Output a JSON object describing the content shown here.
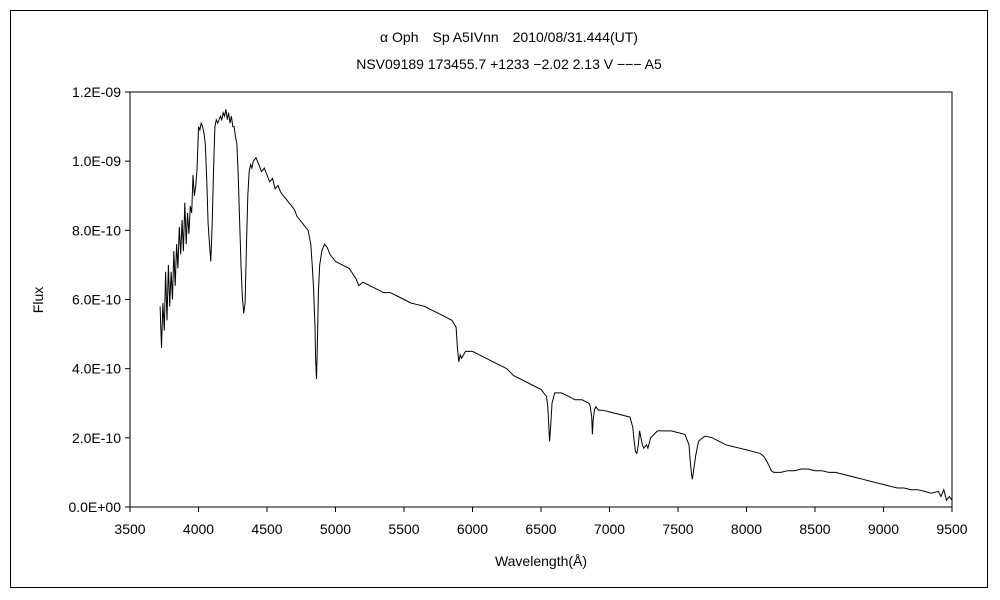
{
  "chart_data": {
    "type": "line",
    "title": "α Oph　Sp A5IVnn　2010/08/31.444(UT)",
    "subtitle": "NSV09189 173455.7 +1233 −2.02 2.13 V −−− A5",
    "xlabel": "Wavelength(Å)",
    "ylabel": "Flux",
    "xlim": [
      3500,
      9500
    ],
    "ylim": [
      0,
      1.2e-09
    ],
    "x_ticks": [
      3500,
      4000,
      4500,
      5000,
      5500,
      6000,
      6500,
      7000,
      7500,
      8000,
      8500,
      9000,
      9500
    ],
    "x_tick_labels": [
      "3500",
      "4000",
      "4500",
      "5000",
      "5500",
      "6000",
      "6500",
      "7000",
      "7500",
      "8000",
      "8500",
      "9000",
      "9500"
    ],
    "y_ticks": [
      0,
      2e-10,
      4e-10,
      6e-10,
      8e-10,
      1e-09,
      1.2e-09
    ],
    "y_tick_labels": [
      "0.0E+00",
      "2.0E-10",
      "4.0E-10",
      "6.0E-10",
      "8.0E-10",
      "1.0E-09",
      "1.2E-09"
    ],
    "grid": false,
    "legend": "none",
    "line_color": "#000000",
    "series": [
      {
        "x": [
          3720,
          3730,
          3740,
          3750,
          3760,
          3770,
          3780,
          3790,
          3800,
          3810,
          3820,
          3830,
          3840,
          3850,
          3860,
          3870,
          3880,
          3890,
          3900,
          3910,
          3920,
          3930,
          3940,
          3950,
          3960,
          3970,
          3980,
          3990,
          4000,
          4010,
          4020,
          4030,
          4040,
          4050,
          4060,
          4070,
          4080,
          4090,
          4100,
          4110,
          4120,
          4130,
          4140,
          4150,
          4160,
          4170,
          4180,
          4190,
          4200,
          4210,
          4220,
          4230,
          4240,
          4250,
          4260,
          4270,
          4280,
          4290,
          4300,
          4310,
          4320,
          4330,
          4340,
          4350,
          4360,
          4370,
          4380,
          4390,
          4400,
          4420,
          4440,
          4460,
          4480,
          4500,
          4520,
          4540,
          4560,
          4580,
          4600,
          4620,
          4640,
          4660,
          4680,
          4700,
          4720,
          4740,
          4760,
          4780,
          4800,
          4820,
          4830,
          4840,
          4850,
          4855,
          4861,
          4867,
          4875,
          4885,
          4900,
          4920,
          4940,
          4960,
          4980,
          5000,
          5050,
          5100,
          5150,
          5170,
          5200,
          5250,
          5300,
          5350,
          5400,
          5450,
          5500,
          5550,
          5600,
          5650,
          5700,
          5750,
          5800,
          5850,
          5880,
          5890,
          5900,
          5910,
          5920,
          5950,
          6000,
          6050,
          6100,
          6150,
          6200,
          6250,
          6300,
          6350,
          6400,
          6450,
          6500,
          6520,
          6540,
          6550,
          6556,
          6563,
          6570,
          6580,
          6600,
          6650,
          6700,
          6750,
          6800,
          6850,
          6860,
          6870,
          6875,
          6880,
          6890,
          6900,
          6920,
          6950,
          7000,
          7050,
          7100,
          7150,
          7170,
          7180,
          7190,
          7200,
          7210,
          7220,
          7240,
          7250,
          7260,
          7270,
          7280,
          7300,
          7350,
          7400,
          7450,
          7500,
          7550,
          7580,
          7590,
          7600,
          7605,
          7615,
          7630,
          7650,
          7680,
          7700,
          7750,
          7800,
          7850,
          7900,
          7950,
          8000,
          8050,
          8100,
          8130,
          8150,
          8170,
          8180,
          8200,
          8250,
          8300,
          8350,
          8400,
          8450,
          8500,
          8550,
          8600,
          8650,
          8700,
          8750,
          8800,
          8850,
          8900,
          8950,
          9000,
          9050,
          9100,
          9150,
          9200,
          9250,
          9300,
          9350,
          9400,
          9420,
          9440,
          9460,
          9480,
          9500
        ],
        "y": [
          5.8e-10,
          4.6e-10,
          5.9e-10,
          5.1e-10,
          6.8e-10,
          5.4e-10,
          7e-10,
          5.8e-10,
          6.8e-10,
          6e-10,
          7.4e-10,
          6.4e-10,
          7.6e-10,
          6.9e-10,
          8.1e-10,
          7.3e-10,
          8.3e-10,
          7.4e-10,
          8.8e-10,
          7.6e-10,
          8.5e-10,
          7.9e-10,
          8.7e-10,
          8.5e-10,
          9.6e-10,
          9e-10,
          9.3e-10,
          9.8e-10,
          1.1e-09,
          1.09e-09,
          1.11e-09,
          1.1e-09,
          1.08e-09,
          1.05e-09,
          9.5e-10,
          8.2e-10,
          7.6e-10,
          7.1e-10,
          8.2e-10,
          9.8e-10,
          1.1e-09,
          1.12e-09,
          1.11e-09,
          1.12e-09,
          1.13e-09,
          1.12e-09,
          1.14e-09,
          1.13e-09,
          1.15e-09,
          1.12e-09,
          1.14e-09,
          1.11e-09,
          1.13e-09,
          1.1e-09,
          1.1e-09,
          1.07e-09,
          1.05e-09,
          9.6e-10,
          8.3e-10,
          7e-10,
          6.1e-10,
          5.6e-10,
          5.9e-10,
          7.5e-10,
          9e-10,
          9.7e-10,
          9.9e-10,
          9.8e-10,
          1e-09,
          1.01e-09,
          9.9e-10,
          9.7e-10,
          9.8e-10,
          9.6e-10,
          9.4e-10,
          9.5e-10,
          9.2e-10,
          9.3e-10,
          9.1e-10,
          9e-10,
          8.9e-10,
          8.8e-10,
          8.7e-10,
          8.6e-10,
          8.4e-10,
          8.3e-10,
          8.2e-10,
          8.1e-10,
          8e-10,
          7.6e-10,
          7e-10,
          6.3e-10,
          5.2e-10,
          4.3e-10,
          3.7e-10,
          4.6e-10,
          6.2e-10,
          7e-10,
          7.4e-10,
          7.6e-10,
          7.5e-10,
          7.3e-10,
          7.2e-10,
          7.1e-10,
          7e-10,
          6.9e-10,
          6.6e-10,
          6.4e-10,
          6.5e-10,
          6.4e-10,
          6.3e-10,
          6.2e-10,
          6.2e-10,
          6.1e-10,
          6e-10,
          5.9e-10,
          5.85e-10,
          5.8e-10,
          5.7e-10,
          5.6e-10,
          5.5e-10,
          5.4e-10,
          5.2e-10,
          4.6e-10,
          4.2e-10,
          4.4e-10,
          4.3e-10,
          4.5e-10,
          4.5e-10,
          4.4e-10,
          4.3e-10,
          4.2e-10,
          4.1e-10,
          4e-10,
          3.8e-10,
          3.7e-10,
          3.6e-10,
          3.5e-10,
          3.4e-10,
          3.3e-10,
          3.2e-10,
          2.9e-10,
          2.4e-10,
          1.9e-10,
          2.3e-10,
          3e-10,
          3.3e-10,
          3.3e-10,
          3.2e-10,
          3.1e-10,
          3.1e-10,
          3e-10,
          2.9e-10,
          2.6e-10,
          2.1e-10,
          2.5e-10,
          2.8e-10,
          2.9e-10,
          2.8e-10,
          2.8e-10,
          2.75e-10,
          2.7e-10,
          2.65e-10,
          2.6e-10,
          2.3e-10,
          1.9e-10,
          1.6e-10,
          1.55e-10,
          1.8e-10,
          2.2e-10,
          1.8e-10,
          1.7e-10,
          1.75e-10,
          1.8e-10,
          1.7e-10,
          2e-10,
          2.2e-10,
          2.2e-10,
          2.2e-10,
          2.15e-10,
          2.1e-10,
          1.8e-10,
          1.3e-10,
          9e-11,
          8e-11,
          1.1e-10,
          1.5e-10,
          1.9e-10,
          2e-10,
          2.05e-10,
          2e-10,
          1.9e-10,
          1.8e-10,
          1.75e-10,
          1.7e-10,
          1.65e-10,
          1.6e-10,
          1.55e-10,
          1.45e-10,
          1.3e-10,
          1.15e-10,
          1.05e-10,
          1e-10,
          1e-10,
          1.05e-10,
          1.05e-10,
          1.1e-10,
          1.1e-10,
          1.05e-10,
          1.05e-10,
          1e-10,
          1e-10,
          9.5e-11,
          9e-11,
          8.5e-11,
          8e-11,
          7.5e-11,
          7e-11,
          6.5e-11,
          6e-11,
          5.5e-11,
          5.5e-11,
          5e-11,
          5e-11,
          4.5e-11,
          4e-11,
          4.5e-11,
          3e-11,
          5e-11,
          2e-11,
          3e-11,
          2e-11
        ]
      }
    ]
  }
}
